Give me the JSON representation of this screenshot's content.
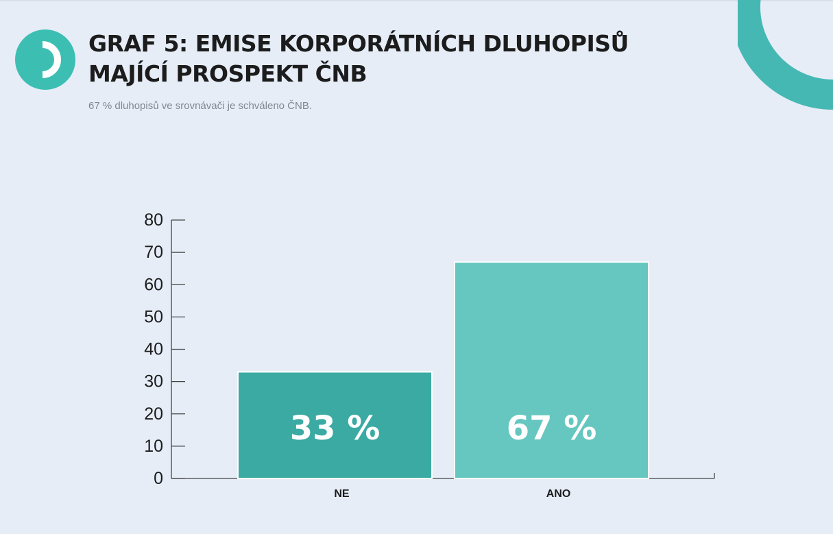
{
  "header": {
    "title": "GRAF 5: EMISE KORPORÁTNÍCH DLUHOPISŮ\nMAJÍCÍ PROSPEKT ČNB",
    "subtitle": "67 % dluhopisů ve srovnávači je schváleno ČNB."
  },
  "colors": {
    "background": "#e6edf7",
    "brand": "#3cbfb2",
    "bar_ne": "#3aaaa3",
    "bar_ano": "#66c6c0",
    "axis": "#444444"
  },
  "icons": {
    "logo": "d-logo-icon",
    "decoration": "ring-arc-decoration"
  },
  "chart_data": {
    "type": "bar",
    "categories": [
      "NE",
      "ANO"
    ],
    "values": [
      33,
      67
    ],
    "data_labels": [
      "33 %",
      "67 %"
    ],
    "yticks": [
      "0",
      "10",
      "20",
      "30",
      "40",
      "50",
      "60",
      "70",
      "80"
    ],
    "ylim": [
      0,
      80
    ],
    "xlabel": "",
    "ylabel": "",
    "grid": false,
    "legend": "none"
  }
}
